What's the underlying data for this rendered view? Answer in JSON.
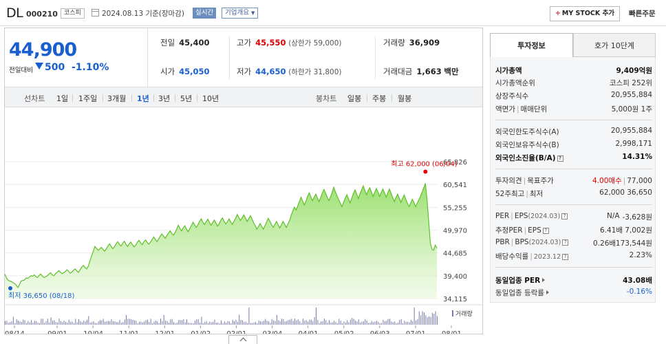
{
  "header": {
    "stock_name": "DL",
    "stock_code": "000210",
    "market": "코스피",
    "date_text": "2024.08.13  기준(장마감)",
    "realtime_label": "실시간",
    "corp_info_label": "기업개요",
    "my_stock_label": "MY STOCK 추가",
    "quick_order_label": "빠른주문"
  },
  "price": {
    "current": "44,900",
    "change_label": "전일대비",
    "change": "500",
    "change_pct": "-1.10%"
  },
  "stats": {
    "prev_label": "전일",
    "prev": "45,400",
    "high_label": "고가",
    "high": "45,550",
    "upper_limit": "(상한가 59,000)",
    "volume_label": "거래량",
    "volume": "36,909",
    "open_label": "시가",
    "open": "45,050",
    "low_label": "저가",
    "low": "44,650",
    "lower_limit": "(하한가 31,800)",
    "value_label": "거래대금",
    "value": "1,663",
    "value_unit": "백만"
  },
  "period": {
    "line_label": "선차트",
    "line_items": [
      "1일",
      "1주일",
      "3개월",
      "1년",
      "3년",
      "5년",
      "10년"
    ],
    "active": "1년",
    "candle_label": "봉차트",
    "candle_items": [
      "일봉",
      "주봉",
      "월봉"
    ]
  },
  "chart_data": {
    "type": "area",
    "y_ticks": [
      "65,826",
      "60,541",
      "55,255",
      "49,970",
      "44,685",
      "39,400",
      "34,115"
    ],
    "ylim": [
      34115,
      65826
    ],
    "x_tick_labels": [
      "08/14",
      "09/01",
      "10/04",
      "11/01",
      "12/01",
      "01/02",
      "02/01",
      "03/04",
      "04/01",
      "05/02",
      "06/03",
      "07/01",
      "08/01"
    ],
    "volume_label": "거래량",
    "high_annotation": "최고 62,000 (06/04)",
    "low_annotation": "최저 36,650 (08/18)",
    "prices": [
      39800,
      38900,
      38400,
      38200,
      38100,
      37800,
      37600,
      37200,
      36650,
      37400,
      38200,
      38300,
      38400,
      38900,
      38800,
      39100,
      39400,
      39300,
      39600,
      39200,
      39000,
      39500,
      39800,
      39300,
      39000,
      39200,
      39400,
      39800,
      40100,
      39600,
      39400,
      39900,
      40200,
      40600,
      40200,
      39900,
      40100,
      40400,
      40800,
      40400,
      40000,
      40300,
      40700,
      41000,
      40500,
      40200,
      40800,
      41400,
      41800,
      41300,
      41000,
      41600,
      42800,
      44000,
      45000,
      46200,
      45800,
      45300,
      45600,
      46000,
      45500,
      45100,
      45600,
      46300,
      46800,
      46200,
      45700,
      46100,
      46800,
      47300,
      46700,
      46300,
      46900,
      47400,
      46700,
      46200,
      46800,
      47200,
      46600,
      46100,
      46500,
      47200,
      47600,
      47000,
      46600,
      47300,
      47700,
      47100,
      46700,
      47200,
      47800,
      48400,
      47800,
      47300,
      47900,
      48600,
      49100,
      48600,
      48100,
      48700,
      49300,
      49800,
      49200,
      48800,
      49400,
      50200,
      51100,
      50400,
      49800,
      50500,
      51000,
      50200,
      49600,
      50300,
      51000,
      51800,
      51200,
      50600,
      51200,
      52000,
      52600,
      51800,
      51300,
      51900,
      52500,
      51800,
      51100,
      51700,
      52300,
      51600,
      50900,
      51500,
      52300,
      52800,
      52000,
      51400,
      51900,
      52600,
      51900,
      51300,
      52000,
      52700,
      53600,
      52900,
      52200,
      52800,
      53500,
      52800,
      52000,
      52600,
      53300,
      52600,
      51700,
      51000,
      50200,
      50800,
      51500,
      50800,
      50200,
      51000,
      51900,
      52700,
      52000,
      51200,
      50600,
      51300,
      52000,
      51200,
      50500,
      51200,
      52000,
      51300,
      50600,
      51400,
      52200,
      53400,
      54500,
      55300,
      54600,
      55600,
      56600,
      57600,
      56700,
      55800,
      56700,
      57800,
      58600,
      57700,
      56800,
      57600,
      58300,
      57400,
      56600,
      57500,
      58600,
      59400,
      58500,
      57600,
      56800,
      57700,
      58700,
      59900,
      58800,
      57900,
      57000,
      56200,
      55400,
      56400,
      57400,
      58200,
      57200,
      56300,
      57400,
      58500,
      59300,
      58300,
      57300,
      58400,
      59300,
      60200,
      59200,
      58200,
      59100,
      59800,
      58800,
      57800,
      58700,
      59600,
      58800,
      57800,
      58700,
      59500,
      58600,
      57600,
      58600,
      59500,
      58500,
      57500,
      56600,
      57500,
      58300,
      57400,
      56400,
      57300,
      58100,
      57100,
      56200,
      55400,
      56200,
      57100,
      56400,
      55400,
      56200,
      57000,
      57800,
      58800,
      59800,
      60800,
      57000,
      52000,
      47000,
      45500,
      45300,
      46500,
      45800
    ]
  },
  "info": {
    "tabs": [
      "투자정보",
      "호가 10단계"
    ],
    "market_cap_label": "시가총액",
    "market_cap": "9,409억원",
    "market_cap_rank_label": "시가총액순위",
    "market_cap_rank": "코스피  252위",
    "shares_label": "상장주식수",
    "shares": "20,955,884",
    "par_label": "액면가",
    "unit_label": "매매단위",
    "par_unit": "5,000원  1주",
    "foreign_limit_label": "외국인한도주식수(A)",
    "foreign_limit": "20,955,884",
    "foreign_hold_label": "외국인보유주식수(B)",
    "foreign_hold": "2,998,171",
    "foreign_ratio_label": "외국인소진율(B/A)",
    "foreign_ratio": "14.31%",
    "opinion_label": "투자의견",
    "target_label": "목표주가",
    "opinion": "4.00매수",
    "target": "77,000",
    "week52_label": "52주최고",
    "week52_low_label": "최저",
    "week52": "62,000  36,650",
    "per_label": "PER",
    "eps_label": "EPS",
    "eps_year": "(2024.03)",
    "per": "N/A",
    "eps": "-3,628원",
    "est_per_label": "추정PER",
    "est_eps_label": "EPS",
    "est_per": "6.41배",
    "est_eps": "7,002원",
    "pbr_label": "PBR",
    "bps_label": "BPS",
    "bps_year": "(2024.03)",
    "pbr": "0.26배",
    "bps": "173,544원",
    "div_label": "배당수익률",
    "div_year": "2023.12",
    "div": "2.23%",
    "sector_per_label": "동일업종 PER",
    "sector_per": "43.08배",
    "sector_rate_label": "동일업종 등락률",
    "sector_rate": "-0.16%"
  }
}
